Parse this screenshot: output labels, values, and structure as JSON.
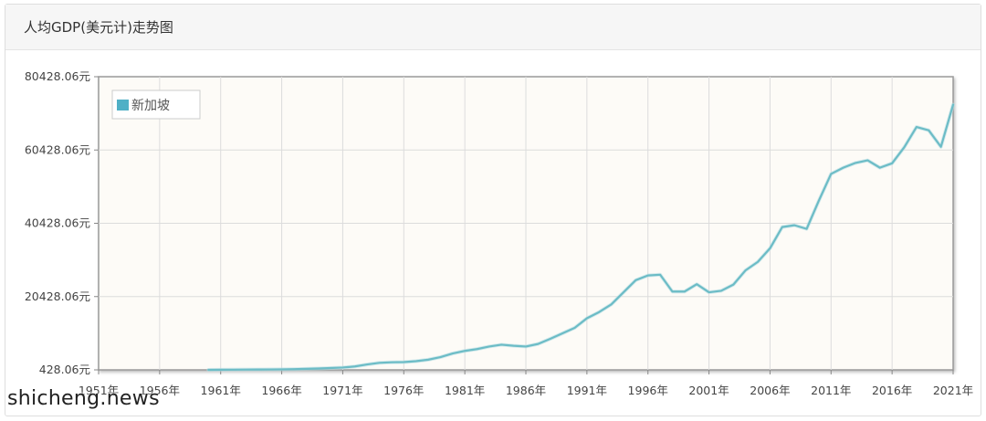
{
  "panel": {
    "title": "人均GDP(美元计)走势图"
  },
  "watermark": {
    "text": "shicheng.news"
  },
  "chart_data": {
    "type": "line",
    "title": "",
    "xlabel": "",
    "ylabel": "",
    "x_ticks": [
      "1951年",
      "1956年",
      "1961年",
      "1966年",
      "1971年",
      "1976年",
      "1981年",
      "1986年",
      "1991年",
      "1996年",
      "2001年",
      "2006年",
      "2011年",
      "2016年",
      "2021年"
    ],
    "y_ticks": [
      "428.06元",
      "20428.06元",
      "40428.06元",
      "60428.06元",
      "80428.06元"
    ],
    "xlim": [
      1951,
      2021
    ],
    "ylim": [
      428.06,
      80428.06
    ],
    "grid": true,
    "legend_position": "top-left",
    "series": [
      {
        "name": "新加坡",
        "color": "#6cbcc6",
        "points": [
          [
            1960,
            428
          ],
          [
            1961,
            450
          ],
          [
            1962,
            480
          ],
          [
            1963,
            510
          ],
          [
            1964,
            520
          ],
          [
            1965,
            540
          ],
          [
            1966,
            570
          ],
          [
            1967,
            620
          ],
          [
            1968,
            700
          ],
          [
            1969,
            800
          ],
          [
            1970,
            920
          ],
          [
            1971,
            1060
          ],
          [
            1972,
            1360
          ],
          [
            1973,
            1900
          ],
          [
            1974,
            2350
          ],
          [
            1975,
            2500
          ],
          [
            1976,
            2550
          ],
          [
            1977,
            2800
          ],
          [
            1978,
            3200
          ],
          [
            1979,
            3900
          ],
          [
            1980,
            4900
          ],
          [
            1981,
            5600
          ],
          [
            1982,
            6100
          ],
          [
            1983,
            6800
          ],
          [
            1984,
            7300
          ],
          [
            1985,
            7000
          ],
          [
            1986,
            6800
          ],
          [
            1987,
            7500
          ],
          [
            1988,
            8900
          ],
          [
            1989,
            10400
          ],
          [
            1990,
            11900
          ],
          [
            1991,
            14500
          ],
          [
            1992,
            16200
          ],
          [
            1993,
            18300
          ],
          [
            1994,
            21600
          ],
          [
            1995,
            24900
          ],
          [
            1996,
            26200
          ],
          [
            1997,
            26400
          ],
          [
            1998,
            21800
          ],
          [
            1999,
            21800
          ],
          [
            2000,
            23800
          ],
          [
            2001,
            21600
          ],
          [
            2002,
            22000
          ],
          [
            2003,
            23700
          ],
          [
            2004,
            27600
          ],
          [
            2005,
            29900
          ],
          [
            2006,
            33600
          ],
          [
            2007,
            39400
          ],
          [
            2008,
            39900
          ],
          [
            2009,
            38900
          ],
          [
            2010,
            46600
          ],
          [
            2011,
            53900
          ],
          [
            2012,
            55600
          ],
          [
            2013,
            56900
          ],
          [
            2014,
            57600
          ],
          [
            2015,
            55600
          ],
          [
            2016,
            56800
          ],
          [
            2017,
            61200
          ],
          [
            2018,
            66700
          ],
          [
            2019,
            65800
          ],
          [
            2020,
            61300
          ],
          [
            2021,
            72800
          ]
        ]
      }
    ]
  }
}
